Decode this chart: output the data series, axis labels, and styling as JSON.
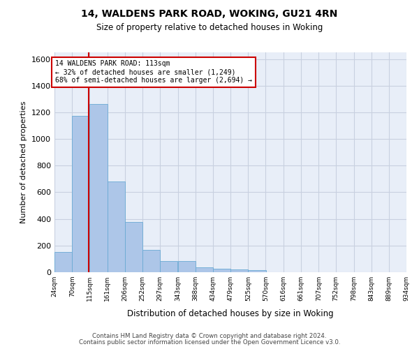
{
  "title1": "14, WALDENS PARK ROAD, WOKING, GU21 4RN",
  "title2": "Size of property relative to detached houses in Woking",
  "xlabel": "Distribution of detached houses by size in Woking",
  "ylabel": "Number of detached properties",
  "footer1": "Contains HM Land Registry data © Crown copyright and database right 2024.",
  "footer2": "Contains public sector information licensed under the Open Government Licence v3.0.",
  "bar_color": "#adc6e8",
  "bar_edge_color": "#6aaad4",
  "grid_color": "#c8d0e0",
  "background_color": "#e8eef8",
  "annotation_box_color": "#cc0000",
  "vline_color": "#cc0000",
  "bins": [
    24,
    70,
    115,
    161,
    206,
    252,
    297,
    343,
    388,
    434,
    479,
    525,
    570,
    616,
    661,
    707,
    752,
    798,
    843,
    889,
    934
  ],
  "counts": [
    150,
    1175,
    1260,
    680,
    375,
    168,
    83,
    83,
    38,
    28,
    22,
    15,
    0,
    0,
    0,
    0,
    0,
    0,
    0,
    0
  ],
  "property_size": 113,
  "annotation_line1": "14 WALDENS PARK ROAD: 113sqm",
  "annotation_line2": "← 32% of detached houses are smaller (1,249)",
  "annotation_line3": "68% of semi-detached houses are larger (2,694) →",
  "ylim": [
    0,
    1650
  ],
  "yticks": [
    0,
    200,
    400,
    600,
    800,
    1000,
    1200,
    1400,
    1600
  ]
}
